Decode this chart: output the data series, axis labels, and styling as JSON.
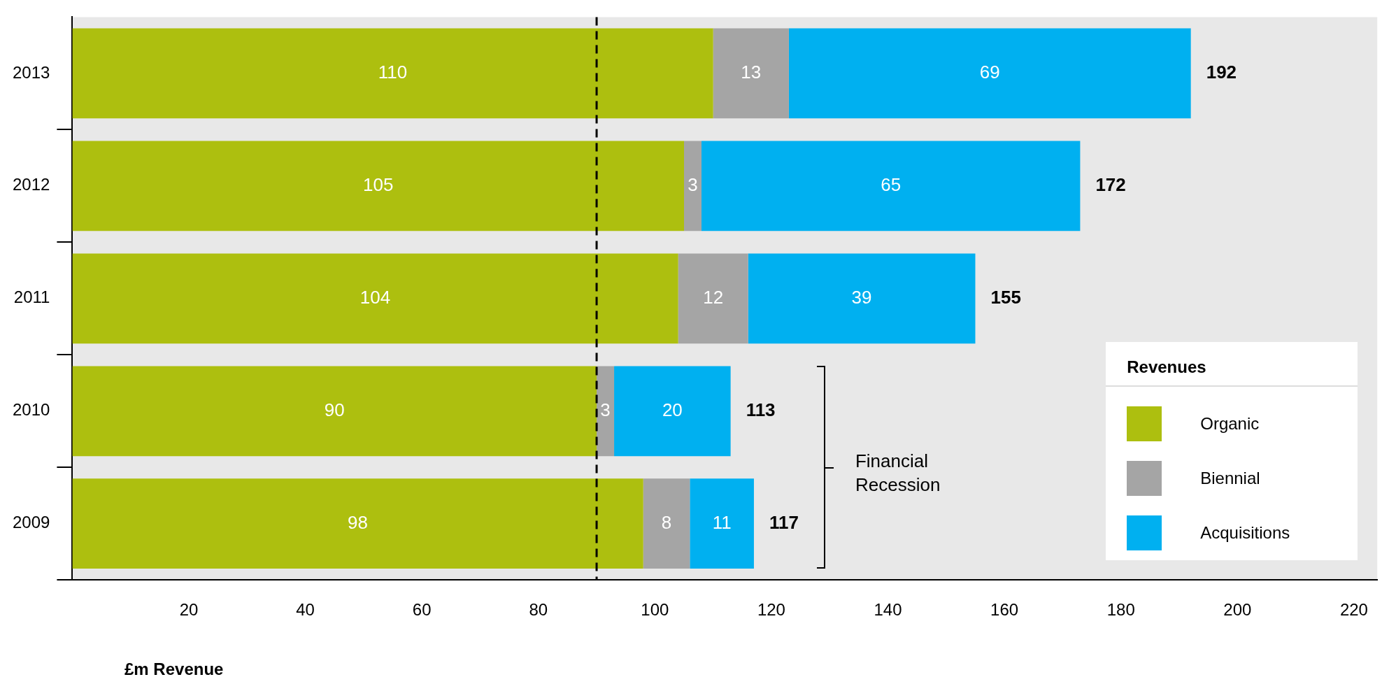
{
  "chart_data": {
    "type": "bar",
    "orientation": "horizontal",
    "stacked": true,
    "categories": [
      "2013",
      "2012",
      "2011",
      "2010",
      "2009"
    ],
    "series": [
      {
        "name": "Organic",
        "color": "#adbf0f",
        "values": [
          110,
          105,
          104,
          90,
          98
        ]
      },
      {
        "name": "Biennial",
        "color": "#a5a5a5",
        "values": [
          13,
          3,
          12,
          3,
          8
        ]
      },
      {
        "name": "Acquisitions",
        "color": "#00b0f0",
        "values": [
          69,
          65,
          39,
          20,
          11
        ]
      }
    ],
    "totals": [
      "192",
      "172",
      "155",
      "113",
      "117"
    ],
    "data_labels": true,
    "xlabel": "£m Revenue",
    "xlim": [
      0,
      224
    ],
    "xticks": [
      20,
      40,
      60,
      80,
      100,
      120,
      140,
      160,
      180,
      200,
      220
    ],
    "ref_lines": [
      {
        "axis": "x",
        "value": 90,
        "line_style": "dashed",
        "color": "#000000"
      }
    ],
    "annotations": [
      "Financial Recession"
    ],
    "legend": "bottom right",
    "legend_title": "Revenues",
    "grid": false
  }
}
